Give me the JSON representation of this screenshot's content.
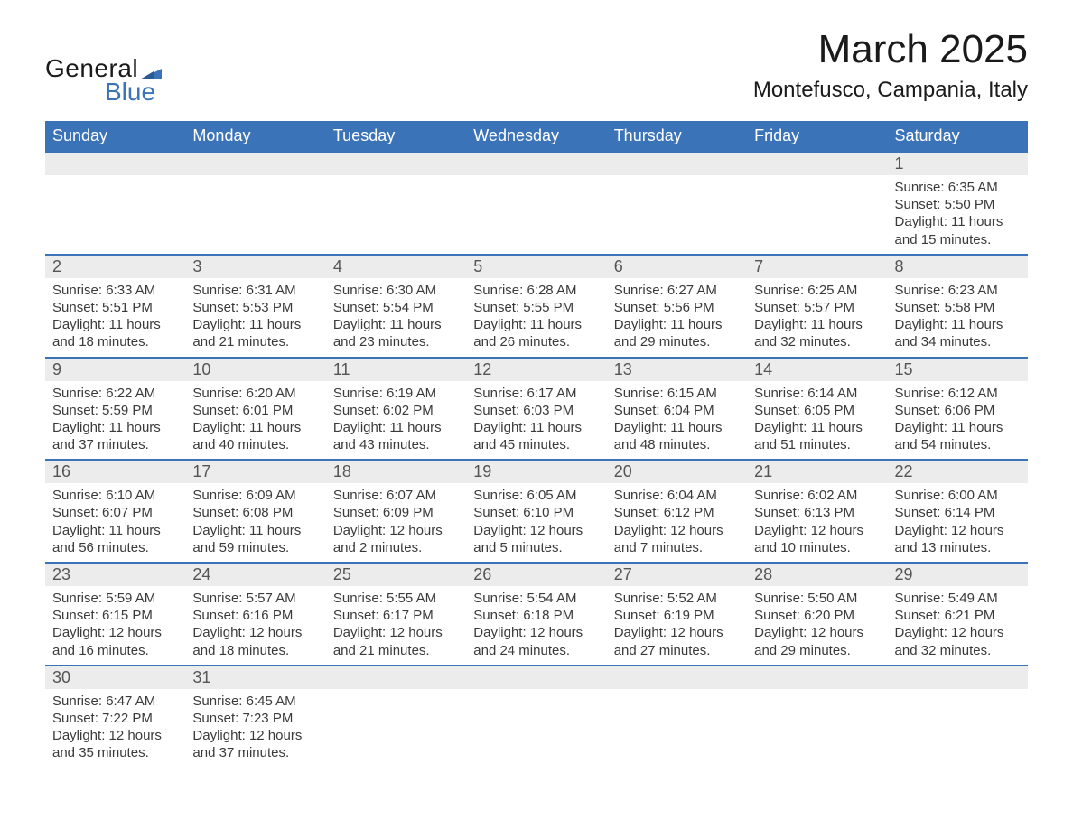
{
  "brand": {
    "name1": "General",
    "name2": "Blue",
    "logo_color": "#3b73b9",
    "text_color": "#1a1a1a"
  },
  "header": {
    "month_year": "March 2025",
    "location": "Montefusco, Campania, Italy"
  },
  "calendar": {
    "type": "table",
    "columns": [
      "Sunday",
      "Monday",
      "Tuesday",
      "Wednesday",
      "Thursday",
      "Friday",
      "Saturday"
    ],
    "header_bg": "#3b73b9",
    "header_fg": "#ffffff",
    "daynum_bg": "#ececec",
    "row_divider_color": "#3b73b9",
    "cell_font_size": 15,
    "header_font_size": 18,
    "daynum_font_size": 18,
    "weeks": [
      [
        null,
        null,
        null,
        null,
        null,
        null,
        {
          "n": "1",
          "sr": "Sunrise: 6:35 AM",
          "ss": "Sunset: 5:50 PM",
          "d1": "Daylight: 11 hours",
          "d2": "and 15 minutes."
        }
      ],
      [
        {
          "n": "2",
          "sr": "Sunrise: 6:33 AM",
          "ss": "Sunset: 5:51 PM",
          "d1": "Daylight: 11 hours",
          "d2": "and 18 minutes."
        },
        {
          "n": "3",
          "sr": "Sunrise: 6:31 AM",
          "ss": "Sunset: 5:53 PM",
          "d1": "Daylight: 11 hours",
          "d2": "and 21 minutes."
        },
        {
          "n": "4",
          "sr": "Sunrise: 6:30 AM",
          "ss": "Sunset: 5:54 PM",
          "d1": "Daylight: 11 hours",
          "d2": "and 23 minutes."
        },
        {
          "n": "5",
          "sr": "Sunrise: 6:28 AM",
          "ss": "Sunset: 5:55 PM",
          "d1": "Daylight: 11 hours",
          "d2": "and 26 minutes."
        },
        {
          "n": "6",
          "sr": "Sunrise: 6:27 AM",
          "ss": "Sunset: 5:56 PM",
          "d1": "Daylight: 11 hours",
          "d2": "and 29 minutes."
        },
        {
          "n": "7",
          "sr": "Sunrise: 6:25 AM",
          "ss": "Sunset: 5:57 PM",
          "d1": "Daylight: 11 hours",
          "d2": "and 32 minutes."
        },
        {
          "n": "8",
          "sr": "Sunrise: 6:23 AM",
          "ss": "Sunset: 5:58 PM",
          "d1": "Daylight: 11 hours",
          "d2": "and 34 minutes."
        }
      ],
      [
        {
          "n": "9",
          "sr": "Sunrise: 6:22 AM",
          "ss": "Sunset: 5:59 PM",
          "d1": "Daylight: 11 hours",
          "d2": "and 37 minutes."
        },
        {
          "n": "10",
          "sr": "Sunrise: 6:20 AM",
          "ss": "Sunset: 6:01 PM",
          "d1": "Daylight: 11 hours",
          "d2": "and 40 minutes."
        },
        {
          "n": "11",
          "sr": "Sunrise: 6:19 AM",
          "ss": "Sunset: 6:02 PM",
          "d1": "Daylight: 11 hours",
          "d2": "and 43 minutes."
        },
        {
          "n": "12",
          "sr": "Sunrise: 6:17 AM",
          "ss": "Sunset: 6:03 PM",
          "d1": "Daylight: 11 hours",
          "d2": "and 45 minutes."
        },
        {
          "n": "13",
          "sr": "Sunrise: 6:15 AM",
          "ss": "Sunset: 6:04 PM",
          "d1": "Daylight: 11 hours",
          "d2": "and 48 minutes."
        },
        {
          "n": "14",
          "sr": "Sunrise: 6:14 AM",
          "ss": "Sunset: 6:05 PM",
          "d1": "Daylight: 11 hours",
          "d2": "and 51 minutes."
        },
        {
          "n": "15",
          "sr": "Sunrise: 6:12 AM",
          "ss": "Sunset: 6:06 PM",
          "d1": "Daylight: 11 hours",
          "d2": "and 54 minutes."
        }
      ],
      [
        {
          "n": "16",
          "sr": "Sunrise: 6:10 AM",
          "ss": "Sunset: 6:07 PM",
          "d1": "Daylight: 11 hours",
          "d2": "and 56 minutes."
        },
        {
          "n": "17",
          "sr": "Sunrise: 6:09 AM",
          "ss": "Sunset: 6:08 PM",
          "d1": "Daylight: 11 hours",
          "d2": "and 59 minutes."
        },
        {
          "n": "18",
          "sr": "Sunrise: 6:07 AM",
          "ss": "Sunset: 6:09 PM",
          "d1": "Daylight: 12 hours",
          "d2": "and 2 minutes."
        },
        {
          "n": "19",
          "sr": "Sunrise: 6:05 AM",
          "ss": "Sunset: 6:10 PM",
          "d1": "Daylight: 12 hours",
          "d2": "and 5 minutes."
        },
        {
          "n": "20",
          "sr": "Sunrise: 6:04 AM",
          "ss": "Sunset: 6:12 PM",
          "d1": "Daylight: 12 hours",
          "d2": "and 7 minutes."
        },
        {
          "n": "21",
          "sr": "Sunrise: 6:02 AM",
          "ss": "Sunset: 6:13 PM",
          "d1": "Daylight: 12 hours",
          "d2": "and 10 minutes."
        },
        {
          "n": "22",
          "sr": "Sunrise: 6:00 AM",
          "ss": "Sunset: 6:14 PM",
          "d1": "Daylight: 12 hours",
          "d2": "and 13 minutes."
        }
      ],
      [
        {
          "n": "23",
          "sr": "Sunrise: 5:59 AM",
          "ss": "Sunset: 6:15 PM",
          "d1": "Daylight: 12 hours",
          "d2": "and 16 minutes."
        },
        {
          "n": "24",
          "sr": "Sunrise: 5:57 AM",
          "ss": "Sunset: 6:16 PM",
          "d1": "Daylight: 12 hours",
          "d2": "and 18 minutes."
        },
        {
          "n": "25",
          "sr": "Sunrise: 5:55 AM",
          "ss": "Sunset: 6:17 PM",
          "d1": "Daylight: 12 hours",
          "d2": "and 21 minutes."
        },
        {
          "n": "26",
          "sr": "Sunrise: 5:54 AM",
          "ss": "Sunset: 6:18 PM",
          "d1": "Daylight: 12 hours",
          "d2": "and 24 minutes."
        },
        {
          "n": "27",
          "sr": "Sunrise: 5:52 AM",
          "ss": "Sunset: 6:19 PM",
          "d1": "Daylight: 12 hours",
          "d2": "and 27 minutes."
        },
        {
          "n": "28",
          "sr": "Sunrise: 5:50 AM",
          "ss": "Sunset: 6:20 PM",
          "d1": "Daylight: 12 hours",
          "d2": "and 29 minutes."
        },
        {
          "n": "29",
          "sr": "Sunrise: 5:49 AM",
          "ss": "Sunset: 6:21 PM",
          "d1": "Daylight: 12 hours",
          "d2": "and 32 minutes."
        }
      ],
      [
        {
          "n": "30",
          "sr": "Sunrise: 6:47 AM",
          "ss": "Sunset: 7:22 PM",
          "d1": "Daylight: 12 hours",
          "d2": "and 35 minutes."
        },
        {
          "n": "31",
          "sr": "Sunrise: 6:45 AM",
          "ss": "Sunset: 7:23 PM",
          "d1": "Daylight: 12 hours",
          "d2": "and 37 minutes."
        },
        null,
        null,
        null,
        null,
        null
      ]
    ]
  }
}
